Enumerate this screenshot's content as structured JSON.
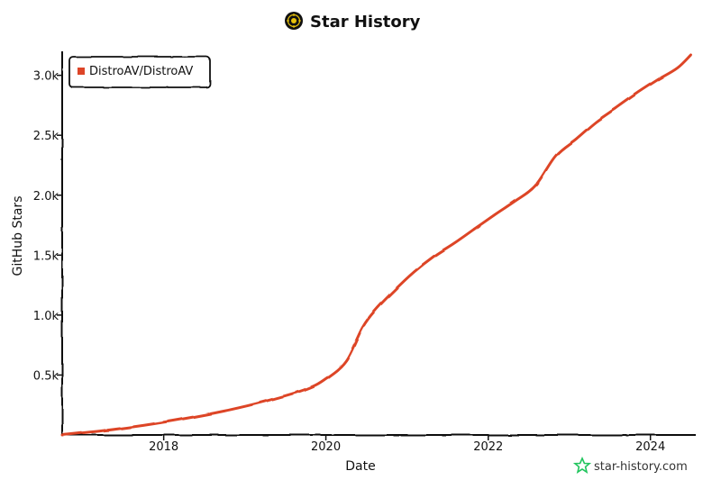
{
  "chart_data": {
    "type": "line",
    "title": "Star History",
    "xlabel": "Date",
    "ylabel": "GitHub Stars",
    "xlim": [
      "2016-10-01",
      "2024-07-15"
    ],
    "ylim": [
      0,
      3200
    ],
    "x_ticks": [
      {
        "date": "2018-01-01",
        "label": "2018"
      },
      {
        "date": "2020-01-01",
        "label": "2020"
      },
      {
        "date": "2022-01-01",
        "label": "2022"
      },
      {
        "date": "2024-01-01",
        "label": "2024"
      }
    ],
    "y_ticks": [
      {
        "value": 500,
        "label": "0.5k"
      },
      {
        "value": 1000,
        "label": "1.0k"
      },
      {
        "value": 1500,
        "label": "1.5k"
      },
      {
        "value": 2000,
        "label": "2.0k"
      },
      {
        "value": 2500,
        "label": "2.5k"
      },
      {
        "value": 3000,
        "label": "3.0k"
      }
    ],
    "legend_position": "top-left",
    "series": [
      {
        "name": "DistroAV/DistroAV",
        "color": "#dd4528",
        "points": [
          [
            "2016-10-01",
            0
          ],
          [
            "2017-04-01",
            35
          ],
          [
            "2017-10-01",
            80
          ],
          [
            "2018-04-01",
            135
          ],
          [
            "2018-10-01",
            200
          ],
          [
            "2019-04-01",
            280
          ],
          [
            "2019-10-01",
            380
          ],
          [
            "2020-01-01",
            470
          ],
          [
            "2020-04-01",
            620
          ],
          [
            "2020-06-15",
            900
          ],
          [
            "2020-08-15",
            1050
          ],
          [
            "2020-11-01",
            1200
          ],
          [
            "2021-02-01",
            1360
          ],
          [
            "2021-05-01",
            1490
          ],
          [
            "2021-08-01",
            1600
          ],
          [
            "2021-11-01",
            1720
          ],
          [
            "2022-02-01",
            1840
          ],
          [
            "2022-05-01",
            1950
          ],
          [
            "2022-08-01",
            2080
          ],
          [
            "2022-11-01",
            2330
          ],
          [
            "2023-02-01",
            2470
          ],
          [
            "2023-05-01",
            2610
          ],
          [
            "2023-08-01",
            2730
          ],
          [
            "2023-11-01",
            2850
          ],
          [
            "2024-02-01",
            2960
          ],
          [
            "2024-05-01",
            3060
          ],
          [
            "2024-07-01",
            3170
          ]
        ]
      }
    ]
  },
  "watermark": {
    "text": "star-history.com",
    "icon": "star-outline-icon",
    "icon_color": "#22c55e"
  },
  "logo_icon": "star-history-logo-icon"
}
